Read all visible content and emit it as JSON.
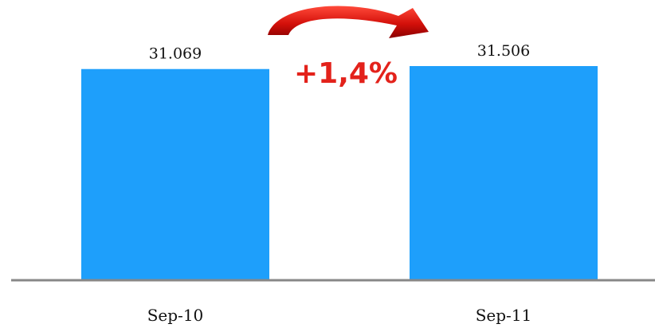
{
  "chart_data": {
    "type": "bar",
    "categories": [
      "Sep-10",
      "Sep-11"
    ],
    "values": [
      31069,
      31506
    ],
    "value_labels": [
      "31.069",
      "31.506"
    ],
    "title": "",
    "xlabel": "",
    "ylabel": "",
    "grid": false,
    "legend": "none",
    "annotation": {
      "text": "+1,4%",
      "arrow": "curved-arrow-icon",
      "color": "#e3221b"
    },
    "colors": {
      "bar": "#1e9ffb",
      "axis": "#888888",
      "annotation": "#e3221b"
    }
  }
}
